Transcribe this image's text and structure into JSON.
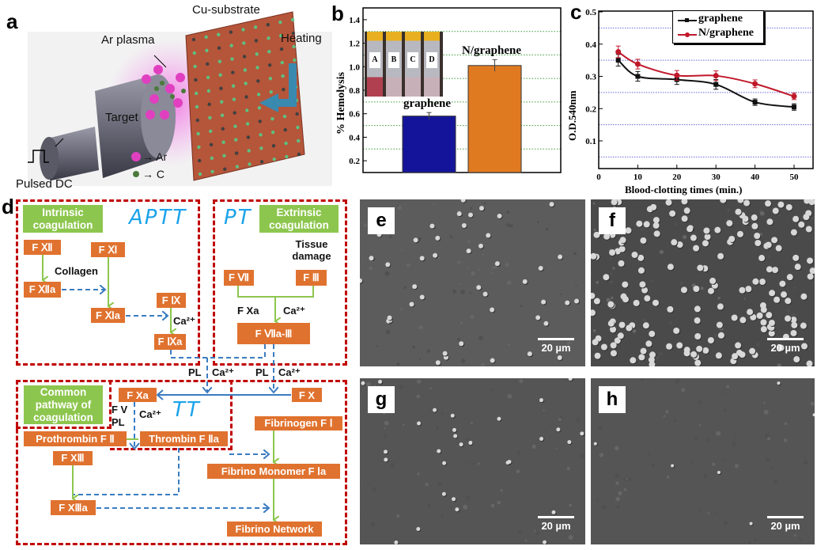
{
  "panel_labels": {
    "a": "a",
    "b": "b",
    "c": "c",
    "d": "d",
    "e": "e",
    "f": "f",
    "g": "g",
    "h": "h"
  },
  "panel_a": {
    "cu_substrate": "Cu-substrate",
    "ar_plasma": "Ar plasma",
    "heating": "Heating",
    "target": "Target",
    "pulsed_dc": "Pulsed DC",
    "legend_ar": "→ Ar",
    "legend_c": "→ C",
    "colors": {
      "ar": "#e040c0",
      "c": "#4a7a3a",
      "substrate": "#b5553a",
      "arrow": "#3a8ab0"
    }
  },
  "panel_b": {
    "inset_tubes": [
      "A",
      "B",
      "C",
      "D"
    ]
  },
  "panel_d": {
    "intrinsic": "Intrinsic coagulation",
    "aptt": "APTT",
    "pt": "PT",
    "extrinsic": "Extrinsic coagulation",
    "tissue_damage": "Tissue damage",
    "f_xii": "F Ⅻ",
    "f_xi": "F Ⅺ",
    "collagen": "Collagen",
    "f_xiia": "F Ⅻa",
    "f_xia": "F Ⅺa",
    "f_ix": "F Ⅸ",
    "ca1": "Ca²⁺",
    "f_ixa": "F Ⅸa",
    "f_vii": "F Ⅶ",
    "f_iii": "F Ⅲ",
    "f_xa_label": "F Xa",
    "ca2": "Ca²⁺",
    "f_viia_iii": "F Ⅶa-Ⅲ",
    "pl1": "PL",
    "ca3": "Ca²⁺",
    "pl2": "PL",
    "ca4": "Ca²⁺",
    "common": "Common pathway of coagulation",
    "f_xa": "F Xa",
    "f_x": "F X",
    "fv": "F V",
    "pl3": "PL",
    "ca5": "Ca²⁺",
    "tt": "TT",
    "fibrinogen": "Fibrinogen F Ⅰ",
    "prothrombin": "Prothrombin F Ⅱ",
    "thrombin": "Thrombin F Ⅱa",
    "f_xiii": "F XⅢ",
    "monomer": "Fibrino Monomer F Ⅰa",
    "f_xiiia": "F XⅢa",
    "network": "Fibrino Network",
    "colors": {
      "node": "#e0722f",
      "group": "#8dc64e",
      "dashed_box": "#c00000",
      "blue_arrow": "#3a7cc0",
      "green_arrow": "#8dc64e",
      "handwriting": "#1ba3ea"
    }
  },
  "sem": {
    "scale": "20 µm"
  },
  "chart_data": [
    {
      "type": "bar",
      "panel": "b",
      "title": "",
      "categories": [
        "graphene",
        "N/graphene"
      ],
      "values": [
        0.58,
        1.01
      ],
      "errors": [
        0.03,
        0.05
      ],
      "colors": [
        "#14149a",
        "#e07a20"
      ],
      "xlabel": "",
      "ylabel": "% Hemolysis",
      "ylim": [
        0.1,
        1.5
      ],
      "yticks": [
        0.2,
        0.4,
        0.6,
        0.8,
        1.0,
        1.2,
        1.4
      ],
      "ytick_labels": [
        "0.2",
        "0.4",
        "0.6",
        "0.8",
        "1.0",
        "1.2",
        "1.4"
      ],
      "grid": true
    },
    {
      "type": "line",
      "panel": "c",
      "title": "",
      "x": [
        5,
        10,
        20,
        30,
        40,
        50
      ],
      "series": [
        {
          "name": "graphene",
          "values": [
            0.35,
            0.3,
            0.29,
            0.275,
            0.22,
            0.205
          ],
          "errors": [
            0.018,
            0.015,
            0.015,
            0.015,
            0.01,
            0.01
          ],
          "color": "#111111"
        },
        {
          "name": "N/graphene",
          "values": [
            0.376,
            0.338,
            0.303,
            0.302,
            0.277,
            0.238
          ],
          "errors": [
            0.018,
            0.015,
            0.015,
            0.015,
            0.012,
            0.01
          ],
          "color": "#c0182a"
        }
      ],
      "xlabel": "Blood-clotting times (min.)",
      "ylabel": "O.D.540nm",
      "xlim": [
        0,
        55
      ],
      "ylim": [
        0,
        0.5
      ],
      "xticks": [
        0,
        10,
        20,
        30,
        40,
        50
      ],
      "xtick_labels": [
        "0",
        "10",
        "20",
        "30",
        "40",
        "50"
      ],
      "yticks": [
        0.1,
        0.2,
        0.3,
        0.4,
        0.5
      ],
      "ytick_labels": [
        "0.1",
        "0.2",
        "0.3",
        "0.4",
        "0.5"
      ],
      "grid": true,
      "legend": "top-center"
    }
  ]
}
